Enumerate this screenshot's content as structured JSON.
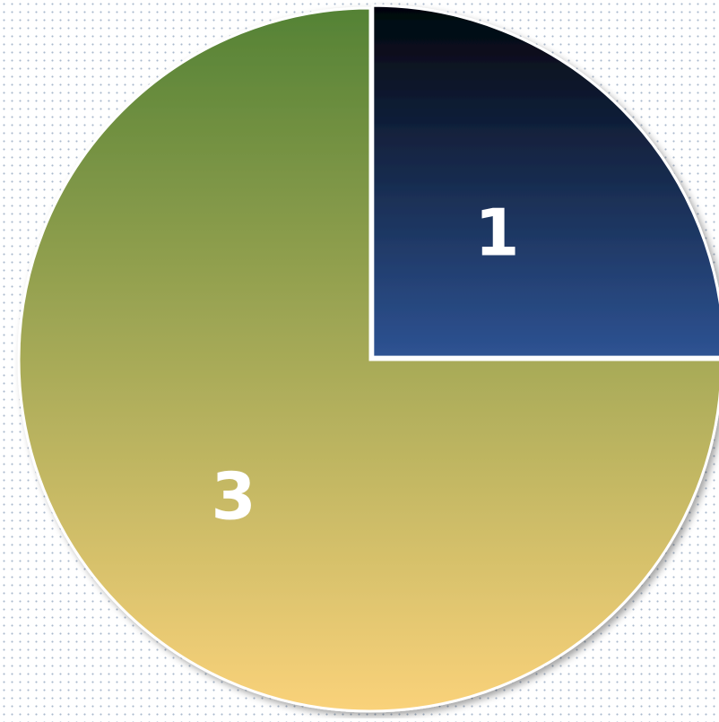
{
  "chart_data": {
    "type": "pie",
    "title": "",
    "slices": [
      {
        "label": "1",
        "value": 1,
        "colors": [
          "#02050c",
          "#2e5393"
        ]
      },
      {
        "label": "3",
        "value": 3,
        "colors": [
          "#548235",
          "#fad27a"
        ]
      }
    ]
  }
}
